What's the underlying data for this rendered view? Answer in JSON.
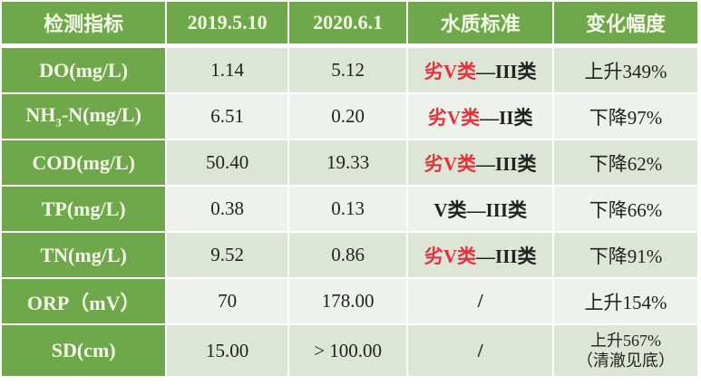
{
  "headers": [
    "检测指标",
    "2019.5.10",
    "2020.6.1",
    "水质标准",
    "变化幅度"
  ],
  "rows": [
    {
      "indicator": "DO(mg/L)",
      "v2019": "1.14",
      "v2020": "5.12",
      "standard_red": "劣V类",
      "standard_black": "—III类",
      "change": "上升349%"
    },
    {
      "indicator": "NH3-N(mg/L)",
      "v2019": "6.51",
      "v2020": "0.20",
      "standard_red": "劣V类",
      "standard_black": "—II类",
      "change": "下降97%"
    },
    {
      "indicator": "COD(mg/L)",
      "v2019": "50.40",
      "v2020": "19.33",
      "standard_red": "劣V类",
      "standard_black": "—III类",
      "change": "下降62%"
    },
    {
      "indicator": "TP(mg/L)",
      "v2019": "0.38",
      "v2020": "0.13",
      "standard_red": "",
      "standard_black": "V类—III类",
      "change": "下降66%"
    },
    {
      "indicator": "TN(mg/L)",
      "v2019": "9.52",
      "v2020": "0.86",
      "standard_red": "劣V类",
      "standard_black": "—III类",
      "change": "下降91%"
    },
    {
      "indicator": "ORP（mV）",
      "v2019": "70",
      "v2020": "178.00",
      "standard_red": "",
      "standard_black": "/",
      "change": "上升154%"
    },
    {
      "indicator": "SD(cm)",
      "v2019": "15.00",
      "v2020": "> 100.00",
      "standard_red": "",
      "standard_black": "/",
      "change": "上升567%",
      "change_note": "（清澈见底）"
    }
  ],
  "colors": {
    "header_green": "#6fa84a",
    "highlight_red": "#e8303a"
  }
}
